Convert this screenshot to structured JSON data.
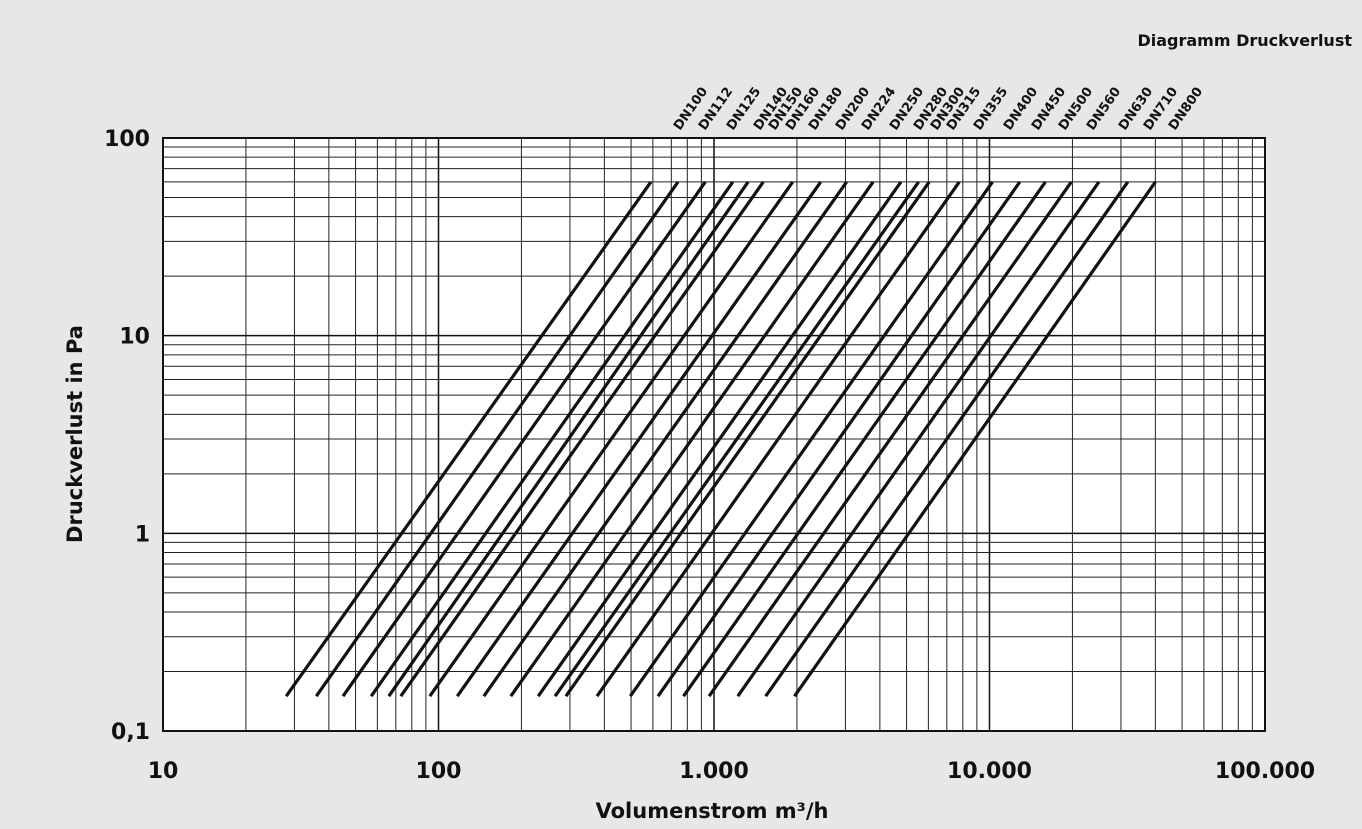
{
  "chart_data": {
    "type": "line",
    "title": "Diagramm Druckverlust",
    "xlabel": "Volumenstrom m³/h",
    "ylabel": "Druckverlust in Pa",
    "x_scale": "log",
    "y_scale": "log",
    "xlim": [
      10,
      100000
    ],
    "ylim": [
      0.1,
      100
    ],
    "grid": true,
    "x_ticks": [
      {
        "value": 10,
        "label": "10"
      },
      {
        "value": 100,
        "label": "100"
      },
      {
        "value": 1000,
        "label": "1.000"
      },
      {
        "value": 10000,
        "label": "10.000"
      },
      {
        "value": 100000,
        "label": "100.000"
      }
    ],
    "y_ticks": [
      {
        "value": 0.1,
        "label": "0,1"
      },
      {
        "value": 1,
        "label": "1"
      },
      {
        "value": 10,
        "label": "10"
      },
      {
        "value": 100,
        "label": "100"
      }
    ],
    "series": [
      {
        "name": "DN100",
        "x": [
          28,
          590
        ],
        "y": [
          0.15,
          60
        ]
      },
      {
        "name": "DN112",
        "x": [
          36,
          740
        ],
        "y": [
          0.15,
          60
        ]
      },
      {
        "name": "DN125",
        "x": [
          45,
          930
        ],
        "y": [
          0.15,
          60
        ]
      },
      {
        "name": "DN140",
        "x": [
          57,
          1170
        ],
        "y": [
          0.15,
          60
        ]
      },
      {
        "name": "DN150",
        "x": [
          66,
          1330
        ],
        "y": [
          0.15,
          60
        ]
      },
      {
        "name": "DN160",
        "x": [
          73,
          1510
        ],
        "y": [
          0.15,
          60
        ]
      },
      {
        "name": "DN180",
        "x": [
          93,
          1930
        ],
        "y": [
          0.15,
          60
        ]
      },
      {
        "name": "DN200",
        "x": [
          117,
          2440
        ],
        "y": [
          0.15,
          60
        ]
      },
      {
        "name": "DN224",
        "x": [
          146,
          3030
        ],
        "y": [
          0.15,
          60
        ]
      },
      {
        "name": "DN250",
        "x": [
          183,
          3780
        ],
        "y": [
          0.15,
          60
        ]
      },
      {
        "name": "DN280",
        "x": [
          230,
          4770
        ],
        "y": [
          0.15,
          60
        ]
      },
      {
        "name": "DN300",
        "x": [
          265,
          5530
        ],
        "y": [
          0.15,
          60
        ]
      },
      {
        "name": "DN315",
        "x": [
          290,
          6040
        ],
        "y": [
          0.15,
          60
        ]
      },
      {
        "name": "DN355",
        "x": [
          376,
          7770
        ],
        "y": [
          0.15,
          60
        ]
      },
      {
        "name": "DN400",
        "x": [
          497,
          10250
        ],
        "y": [
          0.15,
          60
        ]
      },
      {
        "name": "DN450",
        "x": [
          626,
          12880
        ],
        "y": [
          0.15,
          60
        ]
      },
      {
        "name": "DN500",
        "x": [
          775,
          15960
        ],
        "y": [
          0.15,
          60
        ]
      },
      {
        "name": "DN560",
        "x": [
          960,
          19810
        ],
        "y": [
          0.15,
          60
        ]
      },
      {
        "name": "DN630",
        "x": [
          1220,
          24950
        ],
        "y": [
          0.15,
          60
        ]
      },
      {
        "name": "DN710",
        "x": [
          1540,
          31780
        ],
        "y": [
          0.15,
          60
        ]
      },
      {
        "name": "DN800",
        "x": [
          1960,
          40020
        ],
        "y": [
          0.15,
          60
        ]
      }
    ],
    "label_order_x": [
      680,
      705,
      733,
      760,
      775,
      792,
      815,
      842,
      868,
      896,
      920,
      937,
      953,
      980,
      1010,
      1038,
      1065,
      1093,
      1125,
      1150,
      1175
    ]
  }
}
